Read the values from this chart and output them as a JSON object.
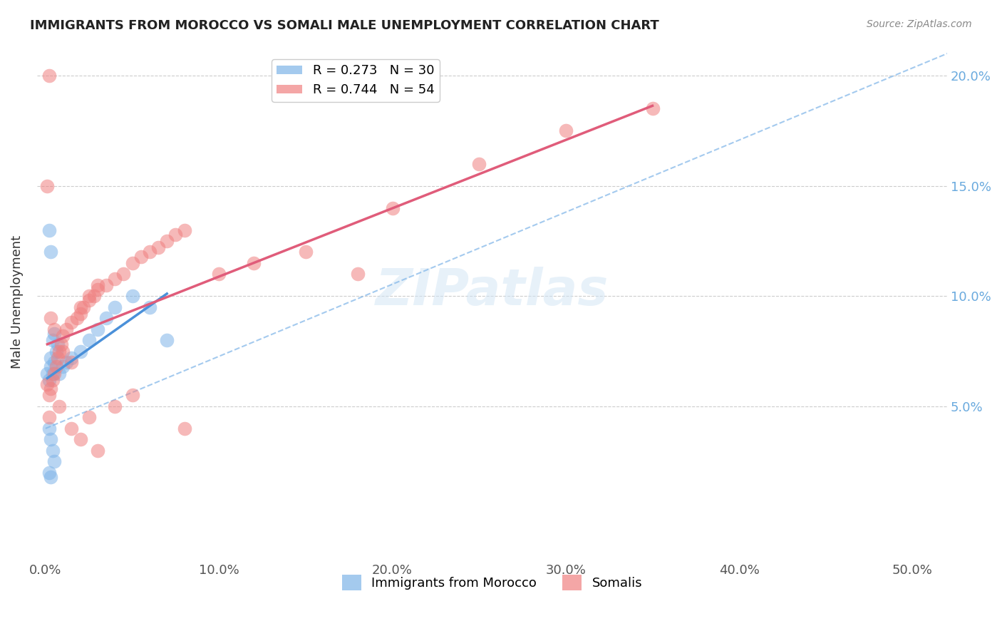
{
  "title": "IMMIGRANTS FROM MOROCCO VS SOMALI MALE UNEMPLOYMENT CORRELATION CHART",
  "source": "Source: ZipAtlas.com",
  "ylabel": "Male Unemployment",
  "xlabel_ticks": [
    "0.0%",
    "10.0%",
    "20.0%",
    "30.0%",
    "40.0%",
    "50.0%"
  ],
  "xlabel_vals": [
    0.0,
    0.1,
    0.2,
    0.3,
    0.4,
    0.5
  ],
  "ylabel_ticks": [
    "5.0%",
    "10.0%",
    "15.0%",
    "20.0%"
  ],
  "ylabel_vals": [
    0.05,
    0.1,
    0.15,
    0.2
  ],
  "xlim": [
    -0.005,
    0.52
  ],
  "ylim": [
    -0.02,
    0.215
  ],
  "watermark": "ZIPatlas",
  "legend_entries": [
    {
      "label": "R = 0.273   N = 30",
      "color": "#7EB4E8"
    },
    {
      "label": "R = 0.744   N = 54",
      "color": "#F08080"
    }
  ],
  "morocco_color": "#7EB4E8",
  "somali_color": "#F08080",
  "morocco_R": 0.273,
  "somali_R": 0.744,
  "morocco_points": [
    [
      0.001,
      0.065
    ],
    [
      0.002,
      0.062
    ],
    [
      0.003,
      0.068
    ],
    [
      0.004,
      0.065
    ],
    [
      0.005,
      0.07
    ],
    [
      0.003,
      0.072
    ],
    [
      0.006,
      0.075
    ],
    [
      0.004,
      0.08
    ],
    [
      0.007,
      0.078
    ],
    [
      0.005,
      0.083
    ],
    [
      0.002,
      0.13
    ],
    [
      0.003,
      0.12
    ],
    [
      0.008,
      0.065
    ],
    [
      0.01,
      0.068
    ],
    [
      0.012,
      0.07
    ],
    [
      0.015,
      0.072
    ],
    [
      0.02,
      0.075
    ],
    [
      0.025,
      0.08
    ],
    [
      0.03,
      0.085
    ],
    [
      0.035,
      0.09
    ],
    [
      0.04,
      0.095
    ],
    [
      0.05,
      0.1
    ],
    [
      0.06,
      0.095
    ],
    [
      0.07,
      0.08
    ],
    [
      0.002,
      0.04
    ],
    [
      0.003,
      0.035
    ],
    [
      0.004,
      0.03
    ],
    [
      0.005,
      0.025
    ],
    [
      0.002,
      0.02
    ],
    [
      0.003,
      0.018
    ]
  ],
  "somali_points": [
    [
      0.001,
      0.06
    ],
    [
      0.002,
      0.055
    ],
    [
      0.003,
      0.058
    ],
    [
      0.004,
      0.062
    ],
    [
      0.005,
      0.065
    ],
    [
      0.006,
      0.068
    ],
    [
      0.007,
      0.072
    ],
    [
      0.008,
      0.075
    ],
    [
      0.009,
      0.078
    ],
    [
      0.01,
      0.082
    ],
    [
      0.012,
      0.085
    ],
    [
      0.015,
      0.088
    ],
    [
      0.018,
      0.09
    ],
    [
      0.02,
      0.092
    ],
    [
      0.022,
      0.095
    ],
    [
      0.025,
      0.098
    ],
    [
      0.028,
      0.1
    ],
    [
      0.03,
      0.103
    ],
    [
      0.035,
      0.105
    ],
    [
      0.04,
      0.108
    ],
    [
      0.045,
      0.11
    ],
    [
      0.05,
      0.115
    ],
    [
      0.055,
      0.118
    ],
    [
      0.06,
      0.12
    ],
    [
      0.065,
      0.122
    ],
    [
      0.07,
      0.125
    ],
    [
      0.075,
      0.128
    ],
    [
      0.08,
      0.13
    ],
    [
      0.001,
      0.15
    ],
    [
      0.02,
      0.095
    ],
    [
      0.025,
      0.1
    ],
    [
      0.03,
      0.105
    ],
    [
      0.003,
      0.09
    ],
    [
      0.005,
      0.085
    ],
    [
      0.015,
      0.07
    ],
    [
      0.01,
      0.075
    ],
    [
      0.002,
      0.045
    ],
    [
      0.008,
      0.05
    ],
    [
      0.025,
      0.045
    ],
    [
      0.04,
      0.05
    ],
    [
      0.05,
      0.055
    ],
    [
      0.1,
      0.11
    ],
    [
      0.12,
      0.115
    ],
    [
      0.15,
      0.12
    ],
    [
      0.2,
      0.14
    ],
    [
      0.25,
      0.16
    ],
    [
      0.3,
      0.175
    ],
    [
      0.35,
      0.185
    ],
    [
      0.002,
      0.2
    ],
    [
      0.18,
      0.11
    ],
    [
      0.08,
      0.04
    ],
    [
      0.03,
      0.03
    ],
    [
      0.02,
      0.035
    ],
    [
      0.015,
      0.04
    ]
  ]
}
